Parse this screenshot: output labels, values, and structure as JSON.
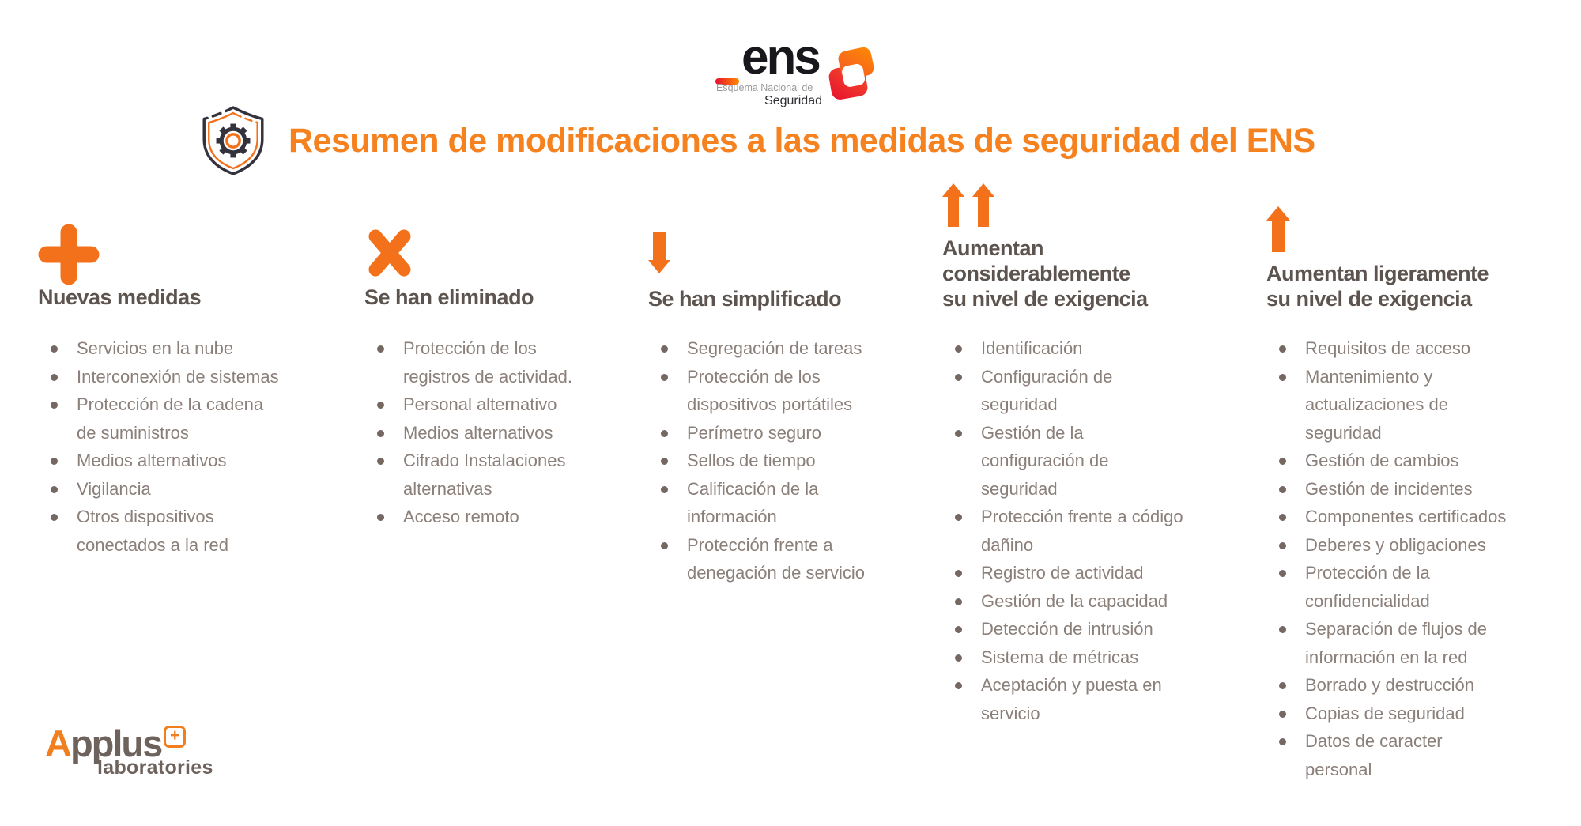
{
  "logo_ens": {
    "wordmark": "ens",
    "tagline_line1": "Esquema Nacional de",
    "tagline_line2": "Seguridad"
  },
  "header": {
    "title": "Resumen de modificaciones a las medidas de seguridad del ENS"
  },
  "columns": [
    {
      "id": "nuevas-medidas",
      "icon": "plus-icon",
      "title": "Nuevas medidas",
      "items": [
        "Servicios en la nube",
        "Interconexión de sistemas",
        "Protección de la cadena\nde suministros",
        "Medios alternativos",
        "Vigilancia",
        "Otros dispositivos\nconectados a la red"
      ]
    },
    {
      "id": "se-han-eliminado",
      "icon": "x-icon",
      "title": "Se han eliminado",
      "items": [
        "Protección de los\nregistros de actividad.",
        "Personal alternativo",
        "Medios alternativos",
        "Cifrado Instalaciones\nalternativas",
        "Acceso remoto"
      ]
    },
    {
      "id": "se-han-simplificado",
      "icon": "arrow-down-icon",
      "title": "Se han simplificado",
      "items": [
        "Segregación de tareas",
        "Protección de los\ndispositivos portátiles",
        "Perímetro seguro",
        "Sellos de tiempo",
        "Calificación de la\ninformación",
        "Protección frente a\ndenegación de servicio"
      ]
    },
    {
      "id": "aumentan-considerablemente",
      "icon": "double-arrow-up-icon",
      "title": "Aumentan\nconsiderablemente\nsu nivel de exigencia",
      "items": [
        "Identificación",
        "Configuración de\nseguridad",
        "Gestión de la\nconfiguración de\nseguridad",
        "Protección frente a código\ndañino",
        "Registro de actividad",
        "Gestión de la capacidad",
        "Detección de intrusión",
        "Sistema de métricas",
        "Aceptación y puesta en\nservicio"
      ]
    },
    {
      "id": "aumentan-ligeramente",
      "icon": "arrow-up-icon",
      "title": "Aumentan ligeramente\nsu nivel de exigencia",
      "items": [
        "Requisitos de acceso",
        "Mantenimiento y\nactualizaciones de\nseguridad",
        "Gestión de cambios",
        "Gestión de incidentes",
        "Componentes certificados",
        "Deberes y obligaciones",
        "Protección de la\nconfidencialidad",
        "Separación de flujos de\ninformación en la red",
        "Borrado y destrucción",
        "Copias de seguridad",
        "Datos de caracter\npersonal"
      ]
    }
  ],
  "footer_brand": {
    "name_initial": "A",
    "name_rest": "pplus",
    "plus_mark": "+",
    "subtitle": "laboratories"
  },
  "colors": {
    "accent_orange": "#F4711C",
    "title_orange": "#F5821F",
    "logo_gradient_from": "#E8102E",
    "logo_gradient_to": "#FF8A00",
    "heading_text": "#5D544F",
    "body_text": "#8B7F7A",
    "bullet_dot": "#756862",
    "logo_dark": "#17171C",
    "tagline_gray": "#9B9B9B",
    "applus_gray": "#6E625D",
    "applus_orange": "#F0801F"
  }
}
